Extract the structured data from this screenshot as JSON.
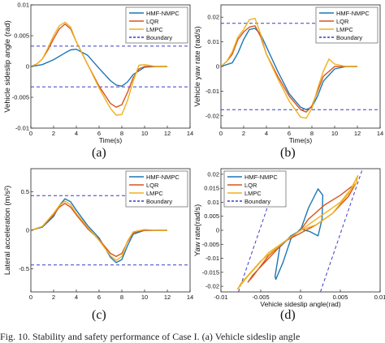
{
  "figure": {
    "caption_fragment": "Fig. 10.   Stability and safety performance of Case I. (a) Vehicle sideslip angle"
  },
  "colors": {
    "HMF-NMPC": "#1f77b4",
    "LQR": "#d9541e",
    "LMPC": "#edb120",
    "Boundary": "#3b3bc4"
  },
  "chart_data": [
    {
      "id": "a",
      "panel_label": "(a)",
      "type": "line",
      "xlabel": "Time(s)",
      "ylabel": "Vehicle sideslip angle (rad)",
      "xlim": [
        0,
        14
      ],
      "ylim": [
        -0.01,
        0.01
      ],
      "xticks": [
        0,
        2,
        4,
        6,
        8,
        10,
        12,
        14
      ],
      "yticks": [
        -0.01,
        -0.005,
        0,
        0.005,
        0.01
      ],
      "yticklabels": [
        "-0.01",
        "-0.005",
        "0",
        "0.005",
        "0.01"
      ],
      "grid": false,
      "legend": "top-right",
      "legend_entries": [
        "HMF-NMPC",
        "LQR",
        "LMPC",
        "Boundary"
      ],
      "boundary": [
        0.0033,
        -0.0033
      ],
      "series": [
        {
          "name": "HMF-NMPC",
          "x": [
            0,
            1,
            2,
            3,
            3.5,
            4,
            5,
            6,
            7,
            7.5,
            8,
            8.5,
            9,
            10,
            11,
            12
          ],
          "y": [
            0,
            0.0003,
            0.0011,
            0.0022,
            0.0027,
            0.0028,
            0.0018,
            -0.0003,
            -0.0023,
            -0.003,
            -0.0032,
            -0.0025,
            -0.0013,
            -0.0001,
            0,
            0
          ]
        },
        {
          "name": "LQR",
          "x": [
            0,
            0.5,
            1,
            1.5,
            2,
            2.5,
            3,
            3.5,
            4,
            5,
            6,
            7,
            7.5,
            8,
            8.5,
            9,
            9.5,
            10,
            11,
            12
          ],
          "y": [
            0,
            0.0004,
            0.0012,
            0.0027,
            0.0045,
            0.0061,
            0.0069,
            0.0061,
            0.004,
            0.0003,
            -0.0032,
            -0.006,
            -0.0066,
            -0.0062,
            -0.0042,
            -0.0018,
            -0.0004,
            0,
            0,
            0
          ]
        },
        {
          "name": "LMPC",
          "x": [
            0,
            0.5,
            1,
            1.5,
            2,
            2.5,
            3,
            3.5,
            4,
            5,
            6,
            7,
            7.5,
            8,
            8.5,
            9,
            9.5,
            10,
            11,
            12
          ],
          "y": [
            0,
            0.0004,
            0.0012,
            0.003,
            0.005,
            0.0066,
            0.0072,
            0.0064,
            0.004,
            0.0003,
            -0.0035,
            -0.0068,
            -0.0079,
            -0.0078,
            -0.0055,
            -0.0024,
            0.0002,
            0.0003,
            0,
            0
          ]
        }
      ]
    },
    {
      "id": "b",
      "panel_label": "(b)",
      "type": "line",
      "xlabel": "Time(s)",
      "ylabel": "Vehicle yaw rate (rad/s)",
      "xlim": [
        0,
        14
      ],
      "ylim": [
        -0.025,
        0.025
      ],
      "xticks": [
        0,
        2,
        4,
        6,
        8,
        10,
        12,
        14
      ],
      "yticks": [
        -0.02,
        -0.01,
        0,
        0.01,
        0.02
      ],
      "yticklabels": [
        "-0.02",
        "-0.01",
        "0",
        "0.01",
        "0.02"
      ],
      "grid": false,
      "legend": "top-right",
      "legend_entries": [
        "HMF-NMPC",
        "LQR",
        "LMPC",
        "Boundary"
      ],
      "boundary": [
        0.0175,
        -0.0175
      ],
      "series": [
        {
          "name": "HMF-NMPC",
          "x": [
            0,
            1,
            1.5,
            2,
            2.5,
            3,
            3.5,
            4,
            5,
            6,
            7,
            7.5,
            8,
            8.5,
            9,
            10,
            11,
            12
          ],
          "y": [
            0,
            0.0015,
            0.0055,
            0.011,
            0.015,
            0.0155,
            0.013,
            0.008,
            -0.002,
            -0.011,
            -0.0165,
            -0.0175,
            -0.0165,
            -0.012,
            -0.006,
            -0.001,
            0,
            0
          ]
        },
        {
          "name": "LQR",
          "x": [
            0,
            0.5,
            1,
            1.5,
            2,
            2.5,
            3,
            3.5,
            4,
            5,
            6,
            7,
            7.5,
            8,
            8.5,
            9,
            10,
            11,
            12
          ],
          "y": [
            0,
            0.002,
            0.005,
            0.011,
            0.014,
            0.016,
            0.0165,
            0.012,
            0.005,
            -0.004,
            -0.012,
            -0.0175,
            -0.0185,
            -0.016,
            -0.01,
            -0.004,
            0,
            0,
            0
          ]
        },
        {
          "name": "LMPC",
          "x": [
            0,
            0.5,
            1,
            1.5,
            2,
            2.5,
            3,
            3.5,
            4,
            5,
            6,
            7,
            7.5,
            8,
            8.5,
            9,
            9.5,
            10,
            11,
            12
          ],
          "y": [
            0,
            0.002,
            0.006,
            0.012,
            0.015,
            0.019,
            0.0195,
            0.013,
            0.005,
            -0.005,
            -0.014,
            -0.0205,
            -0.021,
            -0.017,
            -0.009,
            -0.002,
            0.003,
            0.001,
            0,
            0
          ]
        }
      ]
    },
    {
      "id": "c",
      "panel_label": "(c)",
      "type": "line",
      "xlabel": "",
      "ylabel": "Lateral acceleration (m/s²)",
      "xlim": [
        0,
        14
      ],
      "ylim": [
        -0.8,
        0.8
      ],
      "xticks": [
        0,
        2,
        4,
        6,
        8,
        10,
        12,
        14
      ],
      "yticks": [
        -0.5,
        0,
        0.5
      ],
      "yticklabels": [
        "-0.5",
        "0",
        "0.5"
      ],
      "grid": false,
      "legend": "top-right",
      "legend_entries": [
        "HMF-NMPC",
        "LQR",
        "LMPC",
        "Boundary"
      ],
      "boundary": [
        0.45,
        -0.45
      ],
      "series": [
        {
          "name": "HMF-NMPC",
          "x": [
            0,
            1,
            2,
            2.5,
            3,
            3.5,
            4,
            5,
            6,
            7,
            7.5,
            8,
            8.5,
            9,
            10,
            11,
            12
          ],
          "y": [
            0,
            0.04,
            0.18,
            0.32,
            0.41,
            0.37,
            0.26,
            0.06,
            -0.1,
            -0.35,
            -0.42,
            -0.38,
            -0.2,
            -0.05,
            0,
            0,
            0
          ]
        },
        {
          "name": "LQR",
          "x": [
            0,
            1,
            2,
            2.5,
            3,
            3.5,
            4,
            5,
            6,
            7,
            7.5,
            8,
            8.5,
            9,
            10,
            11,
            12
          ],
          "y": [
            0,
            0.05,
            0.2,
            0.3,
            0.35,
            0.3,
            0.2,
            0.02,
            -0.12,
            -0.3,
            -0.34,
            -0.3,
            -0.15,
            -0.03,
            0,
            0,
            0
          ]
        },
        {
          "name": "LMPC",
          "x": [
            0,
            1,
            2,
            2.5,
            3,
            3.5,
            4,
            5,
            6,
            7,
            7.5,
            8,
            8.5,
            9,
            10,
            11,
            12
          ],
          "y": [
            0,
            0.05,
            0.22,
            0.32,
            0.38,
            0.33,
            0.22,
            0.04,
            -0.13,
            -0.33,
            -0.39,
            -0.34,
            -0.14,
            -0.02,
            0.01,
            0,
            0
          ]
        }
      ]
    },
    {
      "id": "d",
      "panel_label": "(d)",
      "type": "line",
      "xlabel": "Vehicle sideslip angle(rad)",
      "ylabel": "Yaw rate(rad/s)",
      "xlim": [
        -0.01,
        0.01
      ],
      "ylim": [
        -0.022,
        0.022
      ],
      "xticks": [
        -0.01,
        -0.005,
        0,
        0.005,
        0.01
      ],
      "xticklabels": [
        "-0.01",
        "-0.005",
        "0",
        "0.005",
        "0.01"
      ],
      "yticks": [
        -0.02,
        -0.015,
        -0.01,
        -0.005,
        0,
        0.005,
        0.01,
        0.015,
        0.02
      ],
      "yticklabels": [
        "-0.02",
        "-0.015",
        "-0.01",
        "-0.005",
        "0",
        "0.005",
        "0.01",
        "0.015",
        "0.02"
      ],
      "grid": false,
      "legend": "top-left",
      "legend_entries": [
        "HMF-NMPC",
        "LQR",
        "LMPC",
        "Boundary"
      ],
      "boundary_lines": [
        {
          "x": [
            -0.0078,
            -0.0025
          ],
          "y": [
            -0.022,
            0.022
          ]
        },
        {
          "x": [
            0.0025,
            0.0078
          ],
          "y": [
            -0.022,
            0.022
          ]
        }
      ],
      "series": [
        {
          "name": "HMF-NMPC",
          "x": [
            0,
            0.001,
            0.0022,
            0.0028,
            0.0027,
            0.0022,
            0.0012,
            0,
            -0.0012,
            -0.0022,
            -0.0031,
            -0.0032,
            -0.0026,
            -0.0012,
            0
          ],
          "y": [
            0,
            0.008,
            0.0148,
            0.0125,
            0.004,
            -0.002,
            -0.0005,
            0.0005,
            -0.003,
            -0.0115,
            -0.0175,
            -0.0165,
            -0.006,
            -0.002,
            0
          ]
        },
        {
          "name": "LQR",
          "x": [
            0,
            0.001,
            0.003,
            0.005,
            0.0065,
            0.0069,
            0.006,
            0.004,
            0.002,
            0,
            -0.002,
            -0.004,
            -0.006,
            -0.0066,
            -0.006,
            -0.004,
            -0.002,
            0
          ],
          "y": [
            0,
            0.004,
            0.009,
            0.0125,
            0.0158,
            0.0165,
            0.012,
            0.006,
            0.002,
            -0.001,
            -0.004,
            -0.009,
            -0.0165,
            -0.0185,
            -0.016,
            -0.01,
            -0.004,
            0
          ]
        },
        {
          "name": "LMPC",
          "x": [
            0,
            0.002,
            0.004,
            0.006,
            0.0072,
            0.007,
            0.005,
            0.002,
            0,
            -0.002,
            -0.005,
            -0.0075,
            -0.0079,
            -0.0068,
            -0.004,
            -0.001,
            0
          ],
          "y": [
            0,
            0.002,
            0.006,
            0.013,
            0.0195,
            0.017,
            0.01,
            0.004,
            0,
            -0.004,
            -0.011,
            -0.019,
            -0.021,
            -0.017,
            -0.008,
            -0.002,
            0
          ]
        }
      ]
    }
  ]
}
